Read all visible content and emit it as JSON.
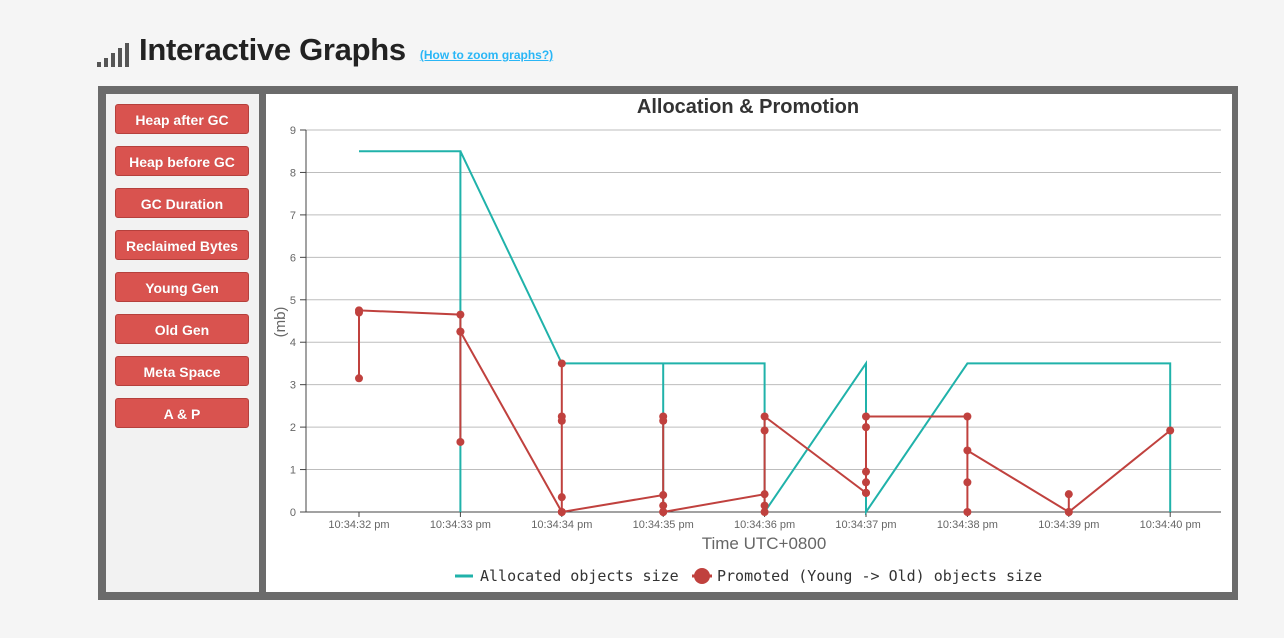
{
  "header": {
    "title": "Interactive Graphs",
    "zoom_link": "(How to zoom graphs?)"
  },
  "sidebar": {
    "buttons": [
      {
        "label": "Heap after GC"
      },
      {
        "label": "Heap before GC"
      },
      {
        "label": "GC Duration"
      },
      {
        "label": "Reclaimed Bytes"
      },
      {
        "label": "Young Gen"
      },
      {
        "label": "Old Gen"
      },
      {
        "label": "Meta Space"
      },
      {
        "label": "A & P"
      }
    ]
  },
  "colors": {
    "allocated": "#20b2aa",
    "promoted": "#c0413e",
    "button": "#d9534f"
  },
  "chart_data": {
    "type": "line",
    "title": "Allocation & Promotion",
    "xlabel": "Time UTC+0800",
    "ylabel": "(mb)",
    "ylim": [
      0,
      9
    ],
    "xlim": [
      0,
      8
    ],
    "yticks": [
      0,
      1,
      2,
      3,
      4,
      5,
      6,
      7,
      8,
      9
    ],
    "grid": true,
    "legend_position": "bottom",
    "xtick_labels": [
      "10:34:32 pm",
      "10:34:33 pm",
      "10:34:34 pm",
      "10:34:35 pm",
      "10:34:36 pm",
      "10:34:37 pm",
      "10:34:38 pm",
      "10:34:39 pm",
      "10:34:40 pm"
    ],
    "series": [
      {
        "name": "Allocated objects size",
        "markers": false,
        "points": [
          [
            0,
            8.5
          ],
          [
            1,
            8.5
          ],
          [
            1,
            0
          ],
          [
            1,
            8.5
          ],
          [
            2,
            3.5
          ],
          [
            3,
            3.5
          ],
          [
            3,
            0
          ],
          [
            3,
            3.5
          ],
          [
            4,
            3.5
          ],
          [
            4,
            0
          ],
          [
            5,
            3.5
          ],
          [
            5,
            0
          ],
          [
            6,
            3.5
          ],
          [
            8,
            3.5
          ],
          [
            8,
            0
          ]
        ]
      },
      {
        "name": "Promoted (Young -> Old) objects size",
        "markers": true,
        "points": [
          [
            0,
            3.15
          ],
          [
            0,
            4.7
          ],
          [
            0,
            4.75
          ],
          [
            1,
            4.65
          ],
          [
            1,
            4.25
          ],
          [
            1,
            1.65
          ],
          [
            1,
            4.25
          ],
          [
            2,
            0
          ],
          [
            2,
            0.35
          ],
          [
            2,
            2.15
          ],
          [
            2,
            2.25
          ],
          [
            2,
            3.5
          ],
          [
            2,
            0
          ],
          [
            3,
            0.4
          ],
          [
            3,
            0.15
          ],
          [
            3,
            0
          ],
          [
            3,
            2.15
          ],
          [
            3,
            2.25
          ],
          [
            3,
            0
          ],
          [
            4,
            0.42
          ],
          [
            4,
            0.15
          ],
          [
            4,
            0
          ],
          [
            4,
            1.92
          ],
          [
            4,
            2.25
          ],
          [
            5,
            0.45
          ],
          [
            5,
            0.45
          ],
          [
            5,
            0.7
          ],
          [
            5,
            0.95
          ],
          [
            5,
            2
          ],
          [
            5,
            2.25
          ],
          [
            6,
            2.25
          ],
          [
            6,
            0
          ],
          [
            6,
            0.7
          ],
          [
            6,
            1.45
          ],
          [
            7,
            0
          ],
          [
            7,
            0.42
          ],
          [
            7,
            0
          ],
          [
            8,
            1.92
          ]
        ]
      }
    ]
  }
}
